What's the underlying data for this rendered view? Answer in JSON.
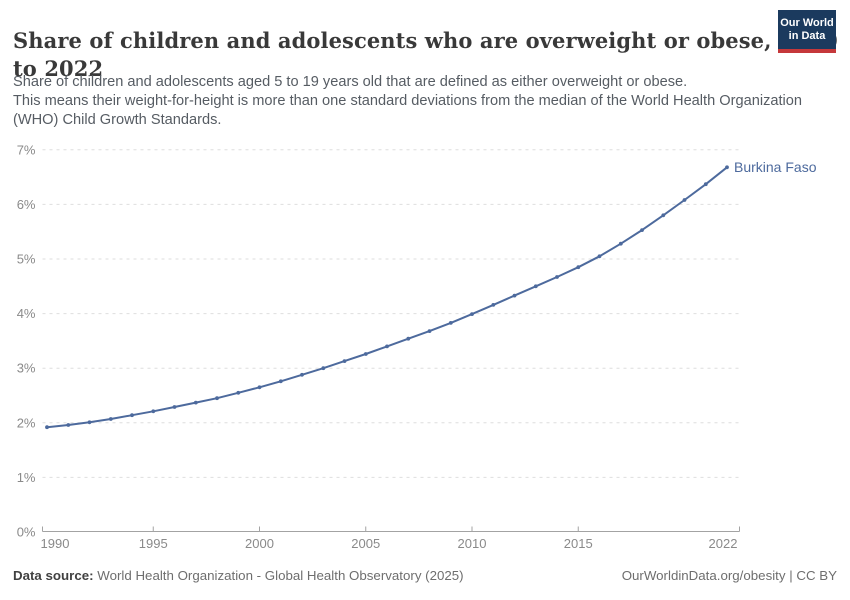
{
  "header": {
    "title_line1": "Share of children and adolescents who are overweight or obese, 1990",
    "title_line2": "to 2022",
    "logo": {
      "line1": "Our World",
      "line2": "in Data"
    }
  },
  "subtitle": {
    "lines": [
      "Share of children and adolescents aged 5 to 19 years old that are defined as either overweight or obese.",
      "This means their weight-for-height is more than one standard deviations from the median of the World Health Organization",
      "(WHO) Child Growth Standards."
    ]
  },
  "chart_data": {
    "type": "line",
    "title": "Share of children and adolescents who are overweight or obese, 1990 to 2022",
    "xlabel": "",
    "ylabel": "",
    "xlim": [
      1990,
      2022
    ],
    "ylim": [
      0,
      7
    ],
    "grid": "horizontal-dashed",
    "legend": "end-of-line-label",
    "x_ticks": [
      1990,
      1995,
      2000,
      2005,
      2010,
      2015,
      2022
    ],
    "y_ticks": [
      0,
      1,
      2,
      3,
      4,
      5,
      6,
      7
    ],
    "y_tick_suffix": "%",
    "series": [
      {
        "name": "Burkina Faso",
        "color": "#4d6a9d",
        "x": [
          1990,
          1991,
          1992,
          1993,
          1994,
          1995,
          1996,
          1997,
          1998,
          1999,
          2000,
          2001,
          2002,
          2003,
          2004,
          2005,
          2006,
          2007,
          2008,
          2009,
          2010,
          2011,
          2012,
          2013,
          2014,
          2015,
          2016,
          2017,
          2018,
          2019,
          2020,
          2021,
          2022
        ],
        "values": [
          1.92,
          1.96,
          2.01,
          2.07,
          2.14,
          2.21,
          2.29,
          2.37,
          2.45,
          2.55,
          2.65,
          2.76,
          2.88,
          3.0,
          3.13,
          3.26,
          3.4,
          3.54,
          3.68,
          3.83,
          3.99,
          4.16,
          4.33,
          4.5,
          4.67,
          4.85,
          5.05,
          5.28,
          5.53,
          5.8,
          6.08,
          6.37,
          6.68
        ]
      }
    ]
  },
  "footer": {
    "source_label": "Data source:",
    "source_text": "World Health Organization - Global Health Observatory (2025)",
    "rights": "OurWorldinData.org/obesity | CC BY"
  },
  "colors": {
    "accent_line": "#4d6a9d",
    "logo_navy": "#1b3a5e",
    "logo_red": "#c5383b",
    "gridline": "#dedede",
    "axis": "#a3a3a3",
    "tick_label": "#8a8a8a",
    "title_text": "#393939",
    "subtitle_text": "#565c63",
    "footer_text": "#6e6e6e"
  }
}
